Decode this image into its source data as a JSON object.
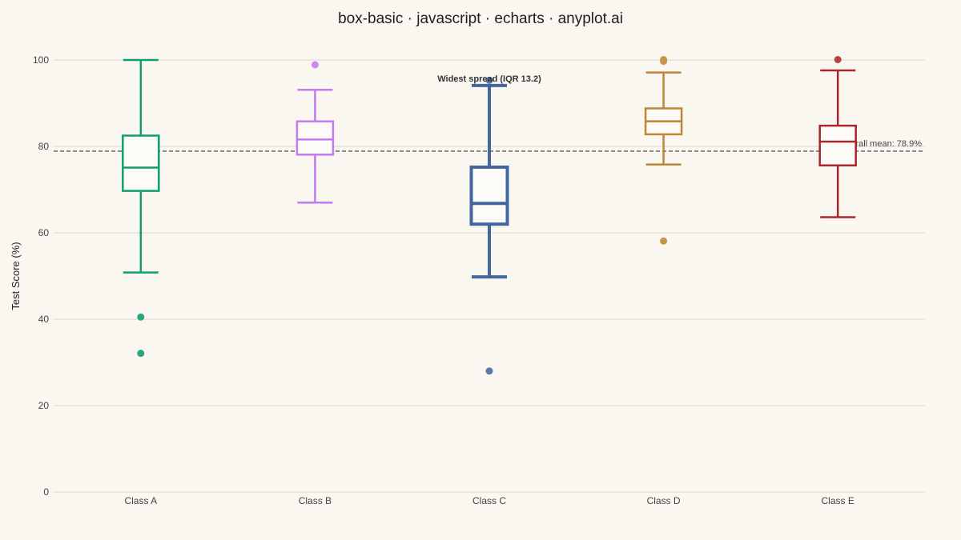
{
  "chart_data": {
    "type": "boxplot",
    "title": "box-basic · javascript · echarts · anyplot.ai",
    "ylabel": "Test Score (%)",
    "xlabel": "",
    "ylim": [
      0,
      100
    ],
    "yticks": [
      0,
      20,
      40,
      60,
      80,
      100
    ],
    "grid": true,
    "categories": [
      "Class A",
      "Class B",
      "Class C",
      "Class D",
      "Class E"
    ],
    "boxes": [
      {
        "category": "Class A",
        "min": 50.8,
        "q1": 69.7,
        "median": 75.1,
        "q3": 82.5,
        "max": 100.0,
        "outliers": [
          40.5,
          32.1
        ],
        "color": "#0E9F6E",
        "highlighted": false
      },
      {
        "category": "Class B",
        "min": 67.0,
        "q1": 78.1,
        "median": 81.6,
        "q3": 85.8,
        "max": 93.1,
        "outliers": [
          98.9
        ],
        "color": "#C27BF0",
        "highlighted": false
      },
      {
        "category": "Class C",
        "min": 49.8,
        "q1": 62.0,
        "median": 66.8,
        "q3": 75.2,
        "max": 94.1,
        "outliers": [
          28.0,
          95.3
        ],
        "color": "#4466A0",
        "highlighted": true
      },
      {
        "category": "Class D",
        "min": 75.8,
        "q1": 82.8,
        "median": 85.8,
        "q3": 88.8,
        "max": 97.1,
        "outliers": [
          58.1,
          99.7,
          100.1
        ],
        "color": "#BD8535",
        "highlighted": false
      },
      {
        "category": "Class E",
        "min": 63.6,
        "q1": 75.6,
        "median": 81.1,
        "q3": 84.8,
        "max": 97.6,
        "outliers": [
          100.1
        ],
        "color": "#A8262E",
        "highlighted": false
      }
    ],
    "outlier_colors": [
      "#2BA67E",
      "#CC88F8",
      "#5E79A6",
      "#C8954F",
      "#BB4244"
    ],
    "mean_line": {
      "value": 78.9,
      "label": "Overall mean: 78.9%",
      "color": "#555555"
    },
    "annotation": {
      "text": "Widest spread (IQR 13.2)",
      "category": "Class C"
    }
  }
}
